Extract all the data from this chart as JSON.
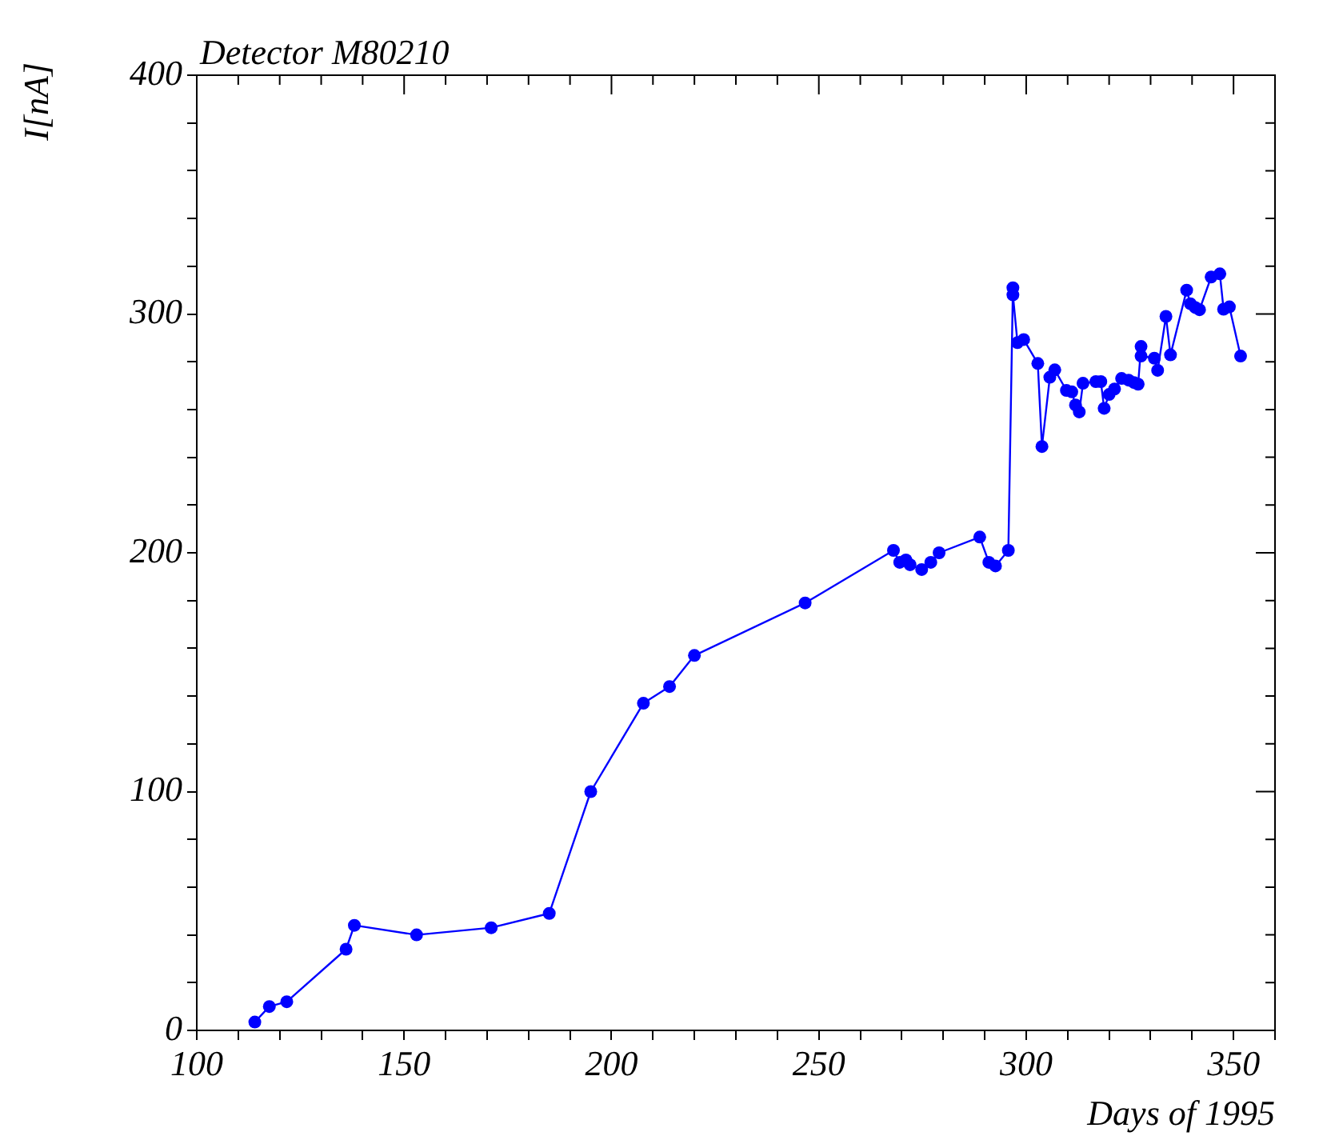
{
  "chart_data": {
    "type": "line",
    "title": "Detector M80210",
    "xlabel": "Days of 1995",
    "ylabel": "I[nA]",
    "x": [
      114,
      117.5,
      121.7,
      136,
      138,
      153,
      171,
      185,
      195,
      207.7,
      214,
      220,
      246.7,
      268,
      269.5,
      271,
      272,
      274.8,
      277,
      279,
      288.8,
      291,
      292.6,
      295.7,
      296.8,
      296.8,
      297.9,
      299.4,
      302.8,
      303.8,
      305.7,
      306.9,
      309.7,
      311,
      311.9,
      312.8,
      313.7,
      316.8,
      318,
      318.8,
      320,
      321.3,
      323,
      324.7,
      326,
      327,
      327.7,
      327.7,
      330.9,
      331.7,
      333.7,
      334.8,
      338.7,
      339.6,
      340.8,
      341.8,
      344.6,
      346.7,
      347.6,
      349,
      351.7
    ],
    "series": [
      {
        "color": "#0000ff",
        "values": [
          3.5,
          10,
          12,
          34,
          44,
          40,
          43,
          49,
          100,
          137,
          144,
          157,
          179,
          201,
          196,
          197,
          195,
          193,
          196,
          200,
          206.6,
          196,
          194.5,
          201,
          311,
          308,
          288,
          289.3,
          279.3,
          244.5,
          273.5,
          276.6,
          268,
          267.4,
          261.9,
          259,
          271,
          271.7,
          271.7,
          260.5,
          266.3,
          268.6,
          273,
          272.3,
          271.3,
          270.6,
          286.4,
          282.4,
          281.5,
          276.4,
          299,
          282.9,
          310,
          304.3,
          302.7,
          301.8,
          315.5,
          316.8,
          302,
          303,
          282.4
        ]
      }
    ],
    "xlim": [
      100,
      360
    ],
    "xticks": [
      100,
      {
        "value": 110,
        "label": null
      },
      {
        "value": 120,
        "label": null
      },
      {
        "value": 130,
        "label": null
      },
      {
        "value": 140,
        "label": null
      },
      150,
      {
        "value": 160,
        "label": null
      },
      {
        "value": 170,
        "label": null
      },
      {
        "value": 180,
        "label": null
      },
      {
        "value": 190,
        "label": null
      },
      200,
      {
        "value": 210,
        "label": null
      },
      {
        "value": 220,
        "label": null
      },
      {
        "value": 230,
        "label": null
      },
      {
        "value": 240,
        "label": null
      },
      250,
      {
        "value": 260,
        "label": null
      },
      {
        "value": 270,
        "label": null
      },
      {
        "value": 280,
        "label": null
      },
      {
        "value": 290,
        "label": null
      },
      300,
      {
        "value": 310,
        "label": null
      },
      {
        "value": 320,
        "label": null
      },
      {
        "value": 330,
        "label": null
      },
      {
        "value": 340,
        "label": null
      },
      350,
      {
        "value": 360,
        "label": null
      }
    ],
    "ylim": [
      0,
      400
    ],
    "yticks": [
      0,
      {
        "value": 20,
        "label": null
      },
      {
        "value": 40,
        "label": null
      },
      {
        "value": 60,
        "label": null
      },
      {
        "value": 80,
        "label": null
      },
      100,
      {
        "value": 120,
        "label": null
      },
      {
        "value": 140,
        "label": null
      },
      {
        "value": 160,
        "label": null
      },
      {
        "value": 180,
        "label": null
      },
      200,
      {
        "value": 220,
        "label": null
      },
      {
        "value": 240,
        "label": null
      },
      {
        "value": 260,
        "label": null
      },
      {
        "value": 280,
        "label": null
      },
      300,
      {
        "value": 320,
        "label": null
      },
      {
        "value": 340,
        "label": null
      },
      {
        "value": 360,
        "label": null
      },
      {
        "value": 380,
        "label": null
      },
      400
    ],
    "grid": false,
    "legend": false,
    "marker": "circle",
    "line_style": "solid"
  }
}
